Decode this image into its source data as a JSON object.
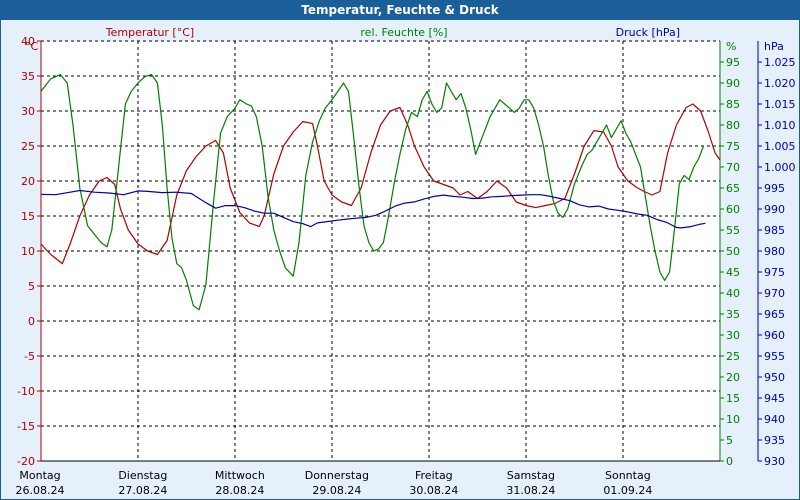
{
  "title": "Temperatur, Feuchte & Druck",
  "colors": {
    "temperature": "#b00000",
    "humidity": "#008000",
    "pressure": "#0000b0",
    "title_bar": "#1a5e9a",
    "plot_background": "#ffffff",
    "panel_background": "#e6f0fb"
  },
  "chart_data": {
    "type": "line",
    "grid": true,
    "legend": "top",
    "x_categories": [
      {
        "day": "Montag",
        "date": "26.08.24"
      },
      {
        "day": "Dienstag",
        "date": "27.08.24"
      },
      {
        "day": "Mittwoch",
        "date": "28.08.24"
      },
      {
        "day": "Donnerstag",
        "date": "29.08.24"
      },
      {
        "day": "Freitag",
        "date": "30.08.24"
      },
      {
        "day": "Samstag",
        "date": "31.08.24"
      },
      {
        "day": "Sonntag",
        "date": "01.09.24"
      }
    ],
    "x_range": [
      0,
      7
    ],
    "axes": {
      "temperature": {
        "label": "Temperatur [°C]",
        "unit": "°C",
        "ticks": [
          "40",
          "35",
          "30",
          "25",
          "20",
          "15",
          "10",
          "5",
          "0",
          "-5",
          "-10",
          "-15",
          "-20"
        ],
        "range": [
          -20,
          40
        ]
      },
      "humidity": {
        "label": "rel. Feuchte [%]",
        "unit": "%",
        "ticks": [
          "95",
          "90",
          "85",
          "80",
          "75",
          "70",
          "65",
          "60",
          "55",
          "50",
          "45",
          "40",
          "35",
          "30",
          "25",
          "20",
          "15",
          "10",
          "5",
          "0"
        ],
        "range": [
          0,
          100
        ]
      },
      "pressure": {
        "label": "Druck [hPa]",
        "unit": "hPa",
        "ticks": [
          "1.025",
          "1.020",
          "1.015",
          "1.010",
          "1.005",
          "1.000",
          "995",
          "990",
          "985",
          "980",
          "975",
          "970",
          "965",
          "960",
          "955",
          "950",
          "945",
          "940",
          "935",
          "930"
        ],
        "range": [
          930,
          1030
        ]
      }
    },
    "series": [
      {
        "key": "temperature",
        "name": "Temperatur [°C]",
        "points": [
          [
            0,
            11
          ],
          [
            0.1,
            9.5
          ],
          [
            0.22,
            8.2
          ],
          [
            0.3,
            11
          ],
          [
            0.4,
            15
          ],
          [
            0.5,
            18
          ],
          [
            0.6,
            20
          ],
          [
            0.68,
            20.5
          ],
          [
            0.76,
            19.5
          ],
          [
            0.82,
            16
          ],
          [
            0.9,
            13
          ],
          [
            1.0,
            11
          ],
          [
            1.1,
            10
          ],
          [
            1.2,
            9.5
          ],
          [
            1.3,
            11.5
          ],
          [
            1.4,
            18
          ],
          [
            1.5,
            21.5
          ],
          [
            1.6,
            23.5
          ],
          [
            1.7,
            25
          ],
          [
            1.8,
            25.8
          ],
          [
            1.88,
            24
          ],
          [
            1.95,
            19
          ],
          [
            2.05,
            15.5
          ],
          [
            2.15,
            14
          ],
          [
            2.25,
            13.5
          ],
          [
            2.3,
            15
          ],
          [
            2.4,
            21
          ],
          [
            2.5,
            25
          ],
          [
            2.6,
            27
          ],
          [
            2.7,
            28.5
          ],
          [
            2.8,
            28.2
          ],
          [
            2.85,
            25
          ],
          [
            2.92,
            20
          ],
          [
            3.0,
            18
          ],
          [
            3.1,
            17
          ],
          [
            3.2,
            16.5
          ],
          [
            3.3,
            19
          ],
          [
            3.4,
            24
          ],
          [
            3.5,
            28
          ],
          [
            3.6,
            30
          ],
          [
            3.7,
            30.5
          ],
          [
            3.78,
            28
          ],
          [
            3.85,
            25
          ],
          [
            3.95,
            22
          ],
          [
            4.05,
            20
          ],
          [
            4.15,
            19.5
          ],
          [
            4.25,
            19
          ],
          [
            4.32,
            18
          ],
          [
            4.4,
            18.5
          ],
          [
            4.5,
            17.5
          ],
          [
            4.6,
            18.5
          ],
          [
            4.7,
            20
          ],
          [
            4.8,
            19
          ],
          [
            4.9,
            17
          ],
          [
            5.0,
            16.5
          ],
          [
            5.1,
            16.2
          ],
          [
            5.2,
            16.5
          ],
          [
            5.3,
            16.8
          ],
          [
            5.4,
            17.5
          ],
          [
            5.5,
            21
          ],
          [
            5.6,
            25
          ],
          [
            5.7,
            27.2
          ],
          [
            5.8,
            27
          ],
          [
            5.88,
            25
          ],
          [
            5.95,
            22
          ],
          [
            6.05,
            20
          ],
          [
            6.15,
            19
          ],
          [
            6.22,
            18.5
          ],
          [
            6.3,
            18
          ],
          [
            6.38,
            18.5
          ],
          [
            6.46,
            24
          ],
          [
            6.55,
            28
          ],
          [
            6.65,
            30.5
          ],
          [
            6.72,
            31
          ],
          [
            6.8,
            30
          ],
          [
            6.88,
            27
          ],
          [
            6.95,
            24
          ],
          [
            7.0,
            23
          ]
        ]
      },
      {
        "key": "humidity",
        "name": "rel. Feuchte [%]",
        "points": [
          [
            0,
            88
          ],
          [
            0.1,
            91
          ],
          [
            0.2,
            92
          ],
          [
            0.27,
            90
          ],
          [
            0.33,
            80
          ],
          [
            0.4,
            65
          ],
          [
            0.48,
            56
          ],
          [
            0.55,
            54
          ],
          [
            0.62,
            52
          ],
          [
            0.68,
            51
          ],
          [
            0.73,
            55
          ],
          [
            0.8,
            70
          ],
          [
            0.87,
            85
          ],
          [
            0.93,
            88
          ],
          [
            1.0,
            90
          ],
          [
            1.07,
            91.5
          ],
          [
            1.14,
            92
          ],
          [
            1.2,
            90
          ],
          [
            1.25,
            80
          ],
          [
            1.3,
            65
          ],
          [
            1.35,
            53
          ],
          [
            1.4,
            47
          ],
          [
            1.45,
            46
          ],
          [
            1.5,
            43
          ],
          [
            1.57,
            37
          ],
          [
            1.63,
            36
          ],
          [
            1.7,
            42
          ],
          [
            1.78,
            62
          ],
          [
            1.85,
            78
          ],
          [
            1.92,
            82
          ],
          [
            2.0,
            84
          ],
          [
            2.05,
            86
          ],
          [
            2.12,
            85
          ],
          [
            2.17,
            84.5
          ],
          [
            2.22,
            82
          ],
          [
            2.28,
            75
          ],
          [
            2.34,
            63
          ],
          [
            2.4,
            55
          ],
          [
            2.46,
            50
          ],
          [
            2.52,
            46
          ],
          [
            2.6,
            44
          ],
          [
            2.66,
            52
          ],
          [
            2.73,
            68
          ],
          [
            2.8,
            76
          ],
          [
            2.87,
            81
          ],
          [
            2.93,
            84
          ],
          [
            3.0,
            86
          ],
          [
            3.06,
            88
          ],
          [
            3.12,
            90
          ],
          [
            3.17,
            88
          ],
          [
            3.22,
            78
          ],
          [
            3.28,
            65
          ],
          [
            3.33,
            56
          ],
          [
            3.38,
            52
          ],
          [
            3.43,
            50
          ],
          [
            3.48,
            50.5
          ],
          [
            3.53,
            52
          ],
          [
            3.58,
            58
          ],
          [
            3.64,
            66
          ],
          [
            3.7,
            73
          ],
          [
            3.76,
            79
          ],
          [
            3.82,
            83
          ],
          [
            3.88,
            82
          ],
          [
            3.93,
            86
          ],
          [
            3.98,
            88
          ],
          [
            4.03,
            85
          ],
          [
            4.08,
            83
          ],
          [
            4.13,
            84
          ],
          [
            4.18,
            90
          ],
          [
            4.23,
            88
          ],
          [
            4.28,
            86
          ],
          [
            4.33,
            87.5
          ],
          [
            4.38,
            84
          ],
          [
            4.43,
            79
          ],
          [
            4.48,
            73
          ],
          [
            4.53,
            76
          ],
          [
            4.58,
            79
          ],
          [
            4.63,
            82
          ],
          [
            4.68,
            84
          ],
          [
            4.73,
            86
          ],
          [
            4.78,
            85
          ],
          [
            4.83,
            84
          ],
          [
            4.88,
            83
          ],
          [
            4.93,
            84
          ],
          [
            4.98,
            86
          ],
          [
            5.03,
            86
          ],
          [
            5.08,
            84
          ],
          [
            5.13,
            80
          ],
          [
            5.18,
            75
          ],
          [
            5.23,
            68
          ],
          [
            5.28,
            62
          ],
          [
            5.33,
            59
          ],
          [
            5.38,
            58
          ],
          [
            5.43,
            60
          ],
          [
            5.5,
            66
          ],
          [
            5.57,
            70
          ],
          [
            5.63,
            73
          ],
          [
            5.68,
            74
          ],
          [
            5.73,
            76
          ],
          [
            5.78,
            78
          ],
          [
            5.83,
            80
          ],
          [
            5.88,
            77
          ],
          [
            5.93,
            79
          ],
          [
            5.98,
            81
          ],
          [
            6.03,
            78
          ],
          [
            6.08,
            76
          ],
          [
            6.13,
            73
          ],
          [
            6.18,
            70
          ],
          [
            6.23,
            63
          ],
          [
            6.28,
            56
          ],
          [
            6.33,
            50
          ],
          [
            6.38,
            45
          ],
          [
            6.43,
            43
          ],
          [
            6.48,
            45
          ],
          [
            6.53,
            55
          ],
          [
            6.58,
            66
          ],
          [
            6.63,
            68
          ],
          [
            6.68,
            67
          ],
          [
            6.73,
            70
          ],
          [
            6.78,
            72
          ],
          [
            6.83,
            75
          ]
        ]
      },
      {
        "key": "pressure",
        "name": "Druck [hPa]",
        "points": [
          [
            0,
            993.5
          ],
          [
            0.15,
            993.4
          ],
          [
            0.3,
            994
          ],
          [
            0.4,
            994.4
          ],
          [
            0.55,
            994
          ],
          [
            0.7,
            993.8
          ],
          [
            0.85,
            993.4
          ],
          [
            1.0,
            994.3
          ],
          [
            1.1,
            994.2
          ],
          [
            1.25,
            993.9
          ],
          [
            1.4,
            994
          ],
          [
            1.55,
            993.7
          ],
          [
            1.7,
            991.5
          ],
          [
            1.8,
            990.2
          ],
          [
            1.9,
            990.8
          ],
          [
            2.0,
            990.8
          ],
          [
            2.1,
            990.3
          ],
          [
            2.2,
            989.5
          ],
          [
            2.3,
            989
          ],
          [
            2.4,
            989
          ],
          [
            2.5,
            988
          ],
          [
            2.6,
            987
          ],
          [
            2.7,
            986.5
          ],
          [
            2.78,
            985.8
          ],
          [
            2.85,
            986.7
          ],
          [
            2.95,
            987
          ],
          [
            3.05,
            987.3
          ],
          [
            3.15,
            987.6
          ],
          [
            3.25,
            987.8
          ],
          [
            3.35,
            988
          ],
          [
            3.45,
            988.5
          ],
          [
            3.55,
            989.5
          ],
          [
            3.65,
            990.7
          ],
          [
            3.75,
            991.4
          ],
          [
            3.85,
            991.7
          ],
          [
            3.95,
            992.4
          ],
          [
            4.05,
            993
          ],
          [
            4.15,
            993.3
          ],
          [
            4.25,
            993
          ],
          [
            4.35,
            992.8
          ],
          [
            4.45,
            992.5
          ],
          [
            4.55,
            992.6
          ],
          [
            4.65,
            992.9
          ],
          [
            4.75,
            993
          ],
          [
            4.85,
            993.2
          ],
          [
            4.95,
            993.3
          ],
          [
            5.05,
            993.4
          ],
          [
            5.15,
            993.4
          ],
          [
            5.25,
            993
          ],
          [
            5.35,
            992.5
          ],
          [
            5.45,
            992
          ],
          [
            5.55,
            991
          ],
          [
            5.65,
            990.5
          ],
          [
            5.75,
            990.7
          ],
          [
            5.85,
            990
          ],
          [
            5.95,
            989.7
          ],
          [
            6.05,
            989.3
          ],
          [
            6.15,
            988.8
          ],
          [
            6.25,
            988.5
          ],
          [
            6.35,
            987.5
          ],
          [
            6.45,
            986.8
          ],
          [
            6.55,
            985.6
          ],
          [
            6.6,
            985.5
          ],
          [
            6.7,
            985.8
          ],
          [
            6.8,
            986.4
          ],
          [
            6.85,
            986.6
          ]
        ]
      }
    ]
  }
}
